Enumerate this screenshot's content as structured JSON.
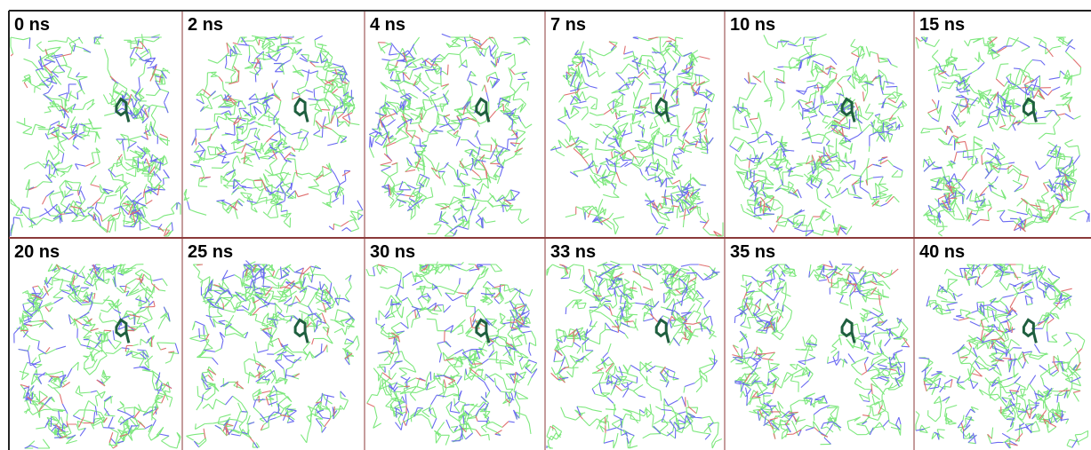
{
  "rows": [
    [
      "0 ns",
      "2 ns",
      "4 ns",
      "7 ns",
      "10 ns",
      "15 ns"
    ],
    [
      "20 ns",
      "25 ns",
      "30 ns",
      "33 ns",
      "35 ns",
      "40 ns"
    ]
  ]
}
